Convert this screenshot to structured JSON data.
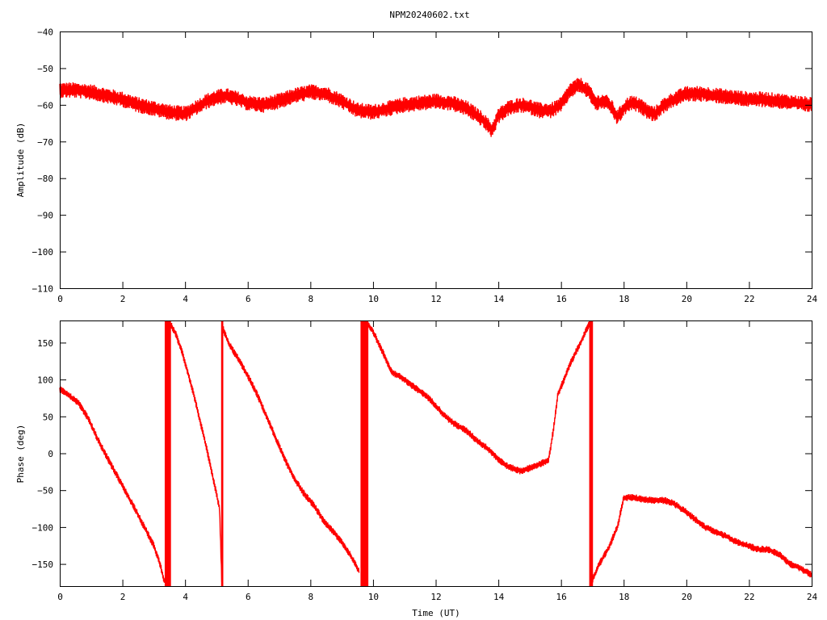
{
  "chart_data": [
    {
      "type": "line",
      "title": "NPM20240602.txt",
      "xlabel": "",
      "ylabel": "Amplitude (dB)",
      "xlim": [
        0,
        24
      ],
      "ylim": [
        -110,
        -40
      ],
      "xticks": [
        "0",
        "2",
        "4",
        "6",
        "8",
        "10",
        "12",
        "14",
        "16",
        "18",
        "20",
        "22",
        "24"
      ],
      "yticks": [
        "-40",
        "-50",
        "-60",
        "-70",
        "-80",
        "-90",
        "-100",
        "-110"
      ],
      "grid": false,
      "line_color": "#ff0000",
      "noise_band": 1.8,
      "series": [
        {
          "x": [
            0,
            0.5,
            1,
            1.5,
            2,
            2.5,
            3,
            3.5,
            4,
            4.3,
            4.7,
            5,
            5.3,
            5.7,
            6,
            6.5,
            7,
            7.5,
            8,
            8.5,
            9,
            9.5,
            10,
            10.5,
            11,
            11.5,
            12,
            12.5,
            13,
            13.5,
            13.8,
            14,
            14.3,
            14.7,
            15,
            15.3,
            15.7,
            16,
            16.3,
            16.6,
            16.9,
            17.1,
            17.4,
            17.6,
            17.8,
            18,
            18.2,
            18.5,
            18.8,
            19,
            19.3,
            19.6,
            20,
            20.5,
            21,
            21.5,
            22,
            22.5,
            23,
            23.5,
            24
          ],
          "y": [
            -56,
            -56,
            -56.5,
            -57.5,
            -58.5,
            -60,
            -61,
            -62,
            -62.5,
            -61,
            -59,
            -58,
            -57.5,
            -58.5,
            -59.5,
            -60,
            -59,
            -57.5,
            -56.5,
            -57,
            -59,
            -61.5,
            -62,
            -61,
            -60,
            -59.5,
            -59,
            -59.5,
            -61,
            -64,
            -67,
            -63,
            -61,
            -60,
            -60.5,
            -61.5,
            -61.5,
            -60,
            -56,
            -54.5,
            -56.5,
            -59.5,
            -59,
            -60.5,
            -63.5,
            -61,
            -59.5,
            -60,
            -62,
            -62.5,
            -60,
            -58.5,
            -57,
            -57,
            -57.5,
            -58,
            -58.5,
            -58.5,
            -59,
            -59.5,
            -60
          ]
        }
      ]
    },
    {
      "type": "line",
      "title": "",
      "xlabel": "Time (UT)",
      "ylabel": "Phase (deg)",
      "xlim": [
        0,
        24
      ],
      "ylim": [
        -180,
        180
      ],
      "xticks": [
        "0",
        "2",
        "4",
        "6",
        "8",
        "10",
        "12",
        "14",
        "16",
        "18",
        "20",
        "22",
        "24"
      ],
      "yticks": [
        "150",
        "100",
        "50",
        "0",
        "-50",
        "-100",
        "-150"
      ],
      "grid": false,
      "line_color": "#ff0000",
      "noise_band": 4,
      "series": [
        {
          "x": [
            0,
            0.3,
            0.6,
            0.9,
            1.2,
            1.5,
            1.8,
            2.1,
            2.4,
            2.7,
            3,
            3.2,
            3.35
          ],
          "y": [
            87,
            78,
            68,
            48,
            20,
            -5,
            -28,
            -52,
            -75,
            -100,
            -125,
            -150,
            -175
          ]
        },
        {
          "x": [
            3.5,
            3.7,
            3.9,
            4.1,
            4.3,
            4.5,
            4.7,
            4.9,
            5.1,
            5.17
          ],
          "y": [
            178,
            162,
            138,
            108,
            76,
            40,
            4,
            -35,
            -75,
            -172
          ]
        },
        {
          "x": [
            5.2,
            5.4,
            5.7,
            6,
            6.3,
            6.6,
            6.9,
            7.2,
            7.5,
            7.8,
            8.1,
            8.4,
            8.7,
            9,
            9.3,
            9.55
          ],
          "y": [
            170,
            148,
            128,
            105,
            80,
            50,
            20,
            -10,
            -35,
            -55,
            -70,
            -90,
            -105,
            -120,
            -140,
            -160
          ]
        },
        {
          "x": [
            9.8,
            10,
            10.3,
            10.6,
            11,
            11.3,
            11.7,
            12,
            12.3,
            12.6,
            13,
            13.3,
            13.7,
            14,
            14.3,
            14.7,
            15,
            15.3,
            15.6,
            15.75,
            15.9,
            16.1,
            16.3,
            16.6,
            16.9
          ],
          "y": [
            178,
            165,
            138,
            110,
            100,
            90,
            78,
            65,
            50,
            40,
            30,
            18,
            5,
            -8,
            -18,
            -24,
            -20,
            -15,
            -10,
            30,
            80,
            100,
            122,
            148,
            175
          ]
        },
        {
          "x": [
            17,
            17.2,
            17.5,
            17.8,
            18,
            18.3,
            18.6,
            19,
            19.3,
            19.6,
            20,
            20.3,
            20.6,
            21,
            21.3,
            21.6,
            22,
            22.3,
            22.6,
            23,
            23.3,
            23.6,
            24
          ],
          "y": [
            -172,
            -152,
            -130,
            -100,
            -60,
            -60,
            -62,
            -64,
            -64,
            -68,
            -80,
            -90,
            -100,
            -108,
            -113,
            -120,
            -126,
            -130,
            -130,
            -138,
            -150,
            -155,
            -165
          ]
        }
      ],
      "wrap_bands": [
        {
          "x0": 3.35,
          "x1": 3.55
        },
        {
          "x0": 5.15,
          "x1": 5.22
        },
        {
          "x0": 9.6,
          "x1": 9.85
        },
        {
          "x0": 16.9,
          "x1": 17.02
        }
      ]
    }
  ]
}
